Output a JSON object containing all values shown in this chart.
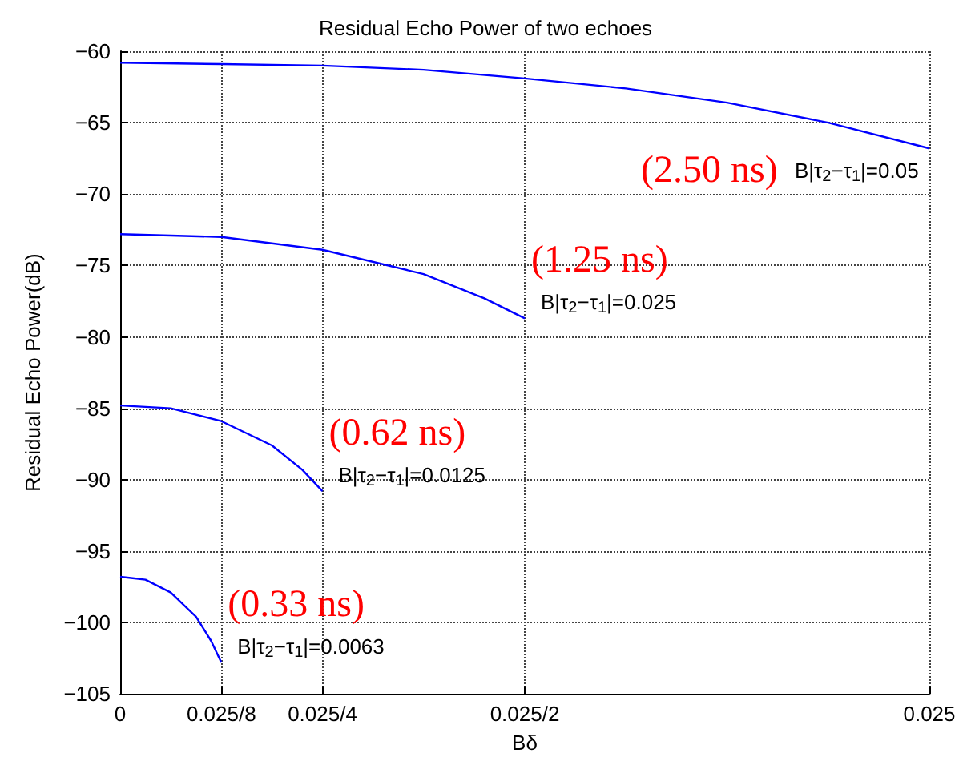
{
  "chart_data": {
    "type": "line",
    "title": "Residual Echo Power of two echoes",
    "xlabel": "Bδ",
    "ylabel": "Residual Echo Power(dB)",
    "xlim": [
      0,
      0.025
    ],
    "xticks": [
      0,
      {
        "value": 0.003125,
        "label": "0.025/8"
      },
      {
        "value": 0.00625,
        "label": "0.025/4"
      },
      {
        "value": 0.0125,
        "label": "0.025/2"
      },
      0.025
    ],
    "ylim": [
      -105,
      -60
    ],
    "yticks": [
      -105,
      -100,
      -95,
      -90,
      -85,
      -80,
      -75,
      -70,
      -65,
      -60
    ],
    "grid": true,
    "marker": "none",
    "line_style": "solid",
    "series": [
      {
        "name": "B|τ$_{2}$−τ$_{1}$|=0.05",
        "color": "#0000ff",
        "x": [
          0,
          0.003125,
          0.00625,
          0.009375,
          0.0125,
          0.015625,
          0.01875,
          0.021875,
          0.025
        ],
        "values": [
          -60.8,
          -60.9,
          -61.0,
          -61.3,
          -61.9,
          -62.6,
          -63.6,
          -65.0,
          -66.8
        ]
      },
      {
        "name": "B|τ$_{2}$−τ$_{1}$|=0.025",
        "color": "#0000ff",
        "x": [
          0,
          0.0015625,
          0.003125,
          0.00625,
          0.009375,
          0.01125,
          0.0125
        ],
        "values": [
          -72.8,
          -72.9,
          -73.0,
          -73.9,
          -75.6,
          -77.3,
          -78.7
        ]
      },
      {
        "name": "B|τ$_{2}$−τ$_{1}$|=0.0125",
        "color": "#0000ff",
        "x": [
          0,
          0.00078125,
          0.0015625,
          0.003125,
          0.0046875,
          0.005625,
          0.00625
        ],
        "values": [
          -84.8,
          -84.9,
          -85.0,
          -85.9,
          -87.6,
          -89.3,
          -90.8
        ]
      },
      {
        "name": "B|τ$_{2}$−τ$_{1}$|=0.0063",
        "color": "#0000ff",
        "x": [
          0,
          0.000390625,
          0.00078125,
          0.0015625,
          0.00234375,
          0.0028125,
          0.003125
        ],
        "values": [
          -96.8,
          -96.9,
          -97.0,
          -97.9,
          -99.6,
          -101.3,
          -102.8
        ]
      }
    ],
    "annotations": [
      "(2.50 ns)",
      "(1.25 ns)",
      "(0.62 ns)",
      "(0.33 ns)"
    ]
  }
}
